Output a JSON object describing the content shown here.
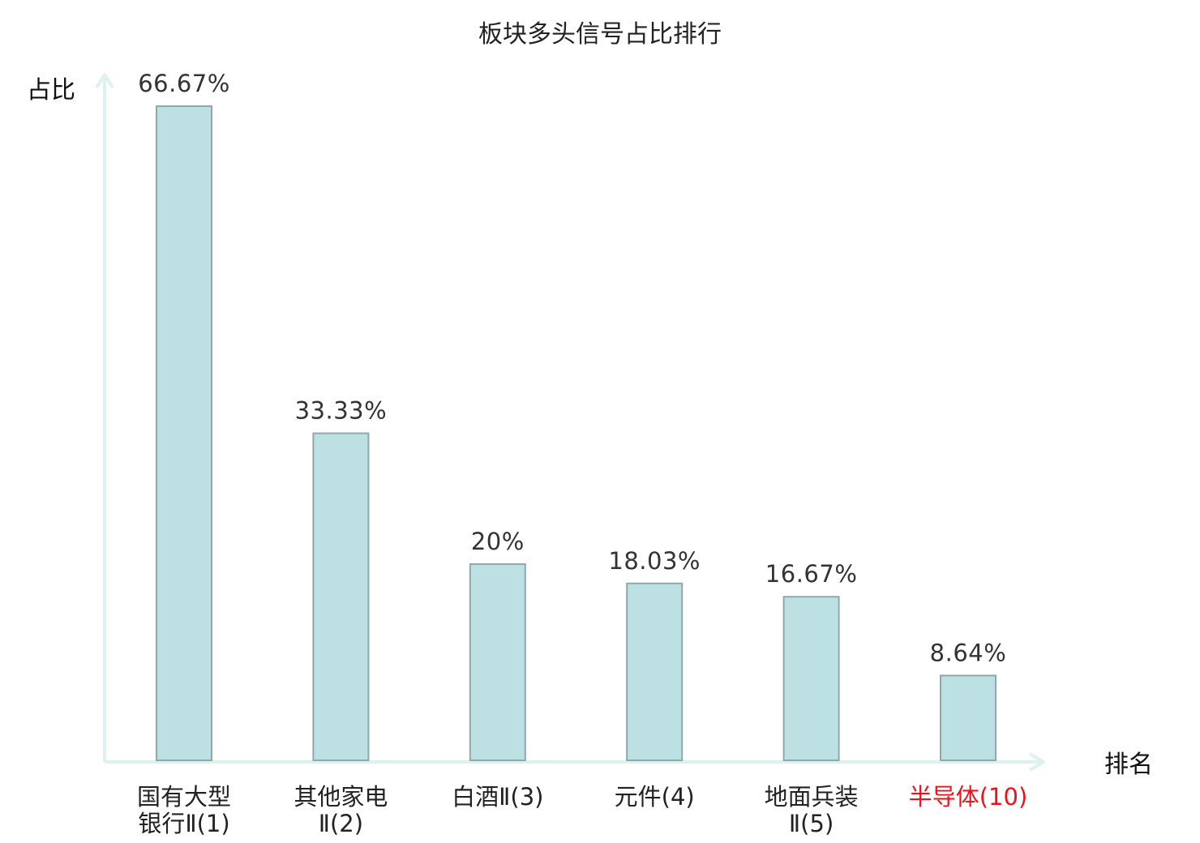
{
  "chart_data": {
    "type": "bar",
    "title": "板块多头信号占比排行",
    "ylabel": "占比",
    "xlabel": "排名",
    "ylim": [
      0,
      70
    ],
    "grid": false,
    "categories": [
      {
        "lines": [
          "国有大型",
          "银行Ⅱ(1)"
        ],
        "highlight": false
      },
      {
        "lines": [
          "其他家电",
          "Ⅱ(2)"
        ],
        "highlight": false
      },
      {
        "lines": [
          "白酒Ⅱ(3)"
        ],
        "highlight": false
      },
      {
        "lines": [
          "元件(4)"
        ],
        "highlight": false
      },
      {
        "lines": [
          "地面兵装",
          "Ⅱ(5)"
        ],
        "highlight": false
      },
      {
        "lines": [
          "半导体(10)"
        ],
        "highlight": true
      }
    ],
    "values": [
      66.67,
      33.33,
      20,
      18.03,
      16.67,
      8.64
    ],
    "value_labels": [
      "66.67%",
      "33.33%",
      "20%",
      "18.03%",
      "16.67%",
      "8.64%"
    ],
    "colors": {
      "bar_fill": "#bde0e3",
      "bar_stroke": "#8fa8a8",
      "axis": "#ddf1ee",
      "label_text": "#222222",
      "highlight_text": "#e8141a"
    }
  }
}
